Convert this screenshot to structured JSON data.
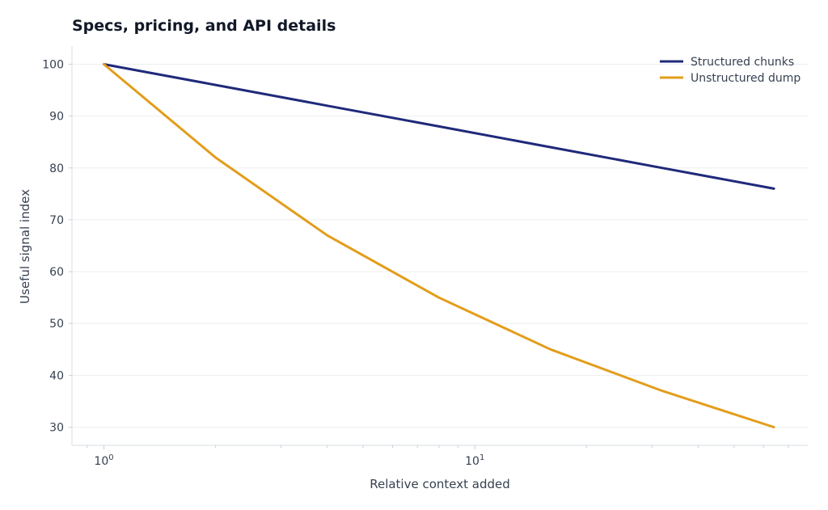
{
  "chart_data": {
    "type": "line",
    "title": "Specs, pricing, and API details",
    "xlabel": "Relative context added",
    "ylabel": "Useful signal index",
    "x_scale": "log",
    "xlim": [
      0.82,
      79
    ],
    "ylim": [
      26.5,
      103.5
    ],
    "x_ticks": [
      {
        "value": 1,
        "base": "10",
        "exp": "0"
      },
      {
        "value": 10,
        "base": "10",
        "exp": "1"
      }
    ],
    "y_ticks": [
      30,
      40,
      50,
      60,
      70,
      80,
      90,
      100
    ],
    "grid": "horizontal",
    "legend_position": "top-right",
    "series": [
      {
        "name": "Structured chunks",
        "color": "#1f2a7a",
        "x": [
          1,
          2,
          4,
          8,
          16,
          32,
          64
        ],
        "y": [
          100,
          96,
          92,
          88,
          84,
          80,
          76
        ]
      },
      {
        "name": "Unstructured dump",
        "color": "#e39d1b",
        "x": [
          1,
          2,
          4,
          8,
          16,
          32,
          64
        ],
        "y": [
          100,
          82,
          67,
          55,
          45,
          37,
          30
        ]
      }
    ]
  }
}
